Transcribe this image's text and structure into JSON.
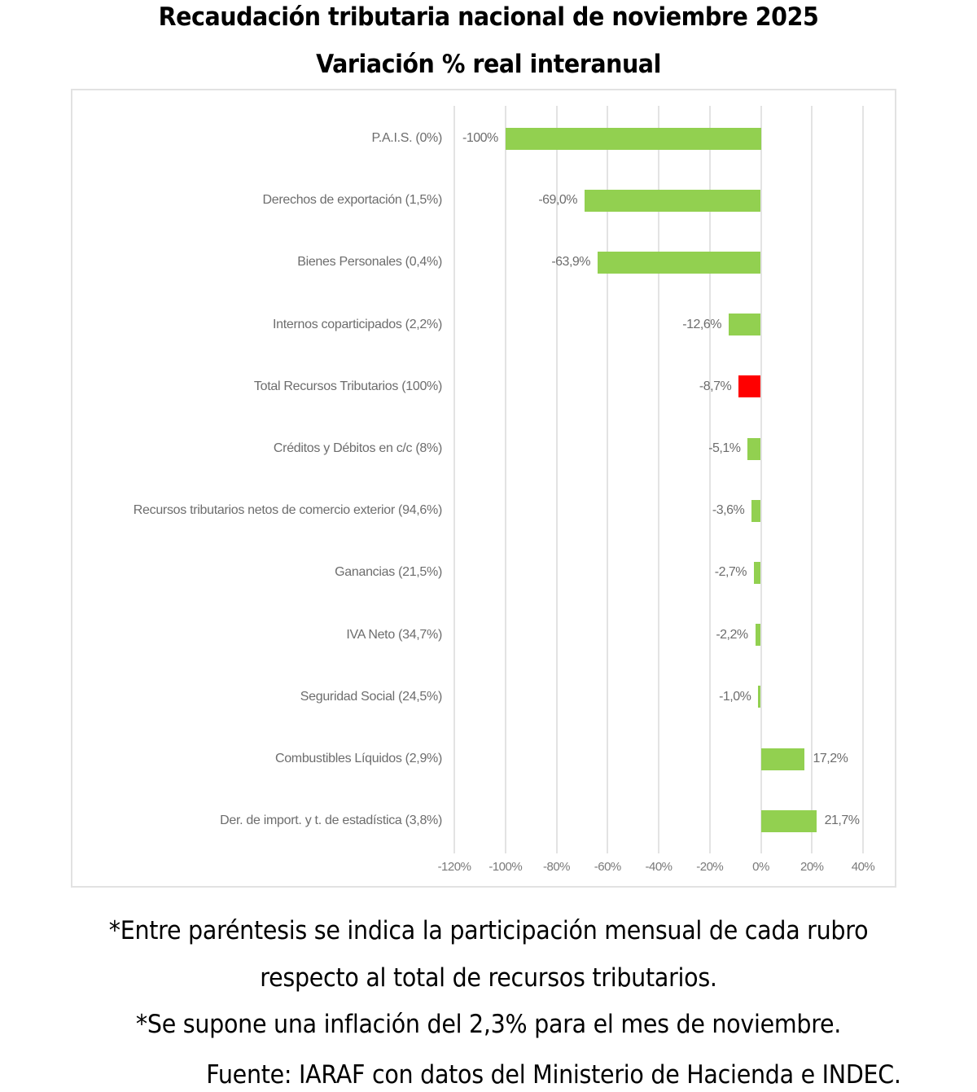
{
  "header": {
    "title": "Recaudación tributaria nacional de noviembre 2025",
    "subtitle": "Variación % real interanual"
  },
  "colors": {
    "positive_bar": "#92d050",
    "total_bar": "#ff0000",
    "gridline": "#e3e3e3",
    "label_text": "#6d6d6d"
  },
  "chart_data": {
    "type": "bar",
    "orientation": "horizontal",
    "title": "Recaudación tributaria nacional de noviembre 2025",
    "subtitle": "Variación % real interanual",
    "xlabel": "",
    "ylabel": "",
    "xlim": [
      -120,
      40
    ],
    "x_ticks": [
      "-120%",
      "-100%",
      "-80%",
      "-60%",
      "-40%",
      "-20%",
      "0%",
      "20%",
      "40%"
    ],
    "grid": true,
    "legend": "none",
    "categories": [
      "P.A.I.S. (0%)",
      "Derechos de exportación (1,5%)",
      "Bienes Personales (0,4%)",
      "Internos coparticipados (2,2%)",
      "Total Recursos Tributarios (100%)",
      "Créditos y Débitos en c/c (8%)",
      "Recursos tributarios netos de comercio exterior (94,6%)",
      "Ganancias (21,5%)",
      "IVA Neto (34,7%)",
      "Seguridad Social (24,5%)",
      "Combustibles Líquidos (2,9%)",
      "Der. de import. y t. de estadística (3,8%)"
    ],
    "values": [
      -100,
      -69.0,
      -63.9,
      -12.6,
      -8.7,
      -5.1,
      -3.6,
      -2.7,
      -2.2,
      -1.0,
      17.2,
      21.7
    ],
    "value_labels": [
      "-100%",
      "-69,0%",
      "-63,9%",
      "-12,6%",
      "-8,7%",
      "-5,1%",
      "-3,6%",
      "-2,7%",
      "-2,2%",
      "-1,0%",
      "17,2%",
      "21,7%"
    ],
    "highlight": [
      "normal",
      "normal",
      "normal",
      "normal",
      "total",
      "normal",
      "normal",
      "normal",
      "normal",
      "normal",
      "normal",
      "normal"
    ]
  },
  "footnotes": {
    "note1": "*Entre paréntesis se indica la participación mensual de cada rubro",
    "note2": "respecto al total de recursos tributarios.",
    "note3": "*Se supone una inflación del 2,3% para el mes de noviembre.",
    "source": "Fuente: IARAF con datos del Ministerio de Hacienda e INDEC."
  }
}
